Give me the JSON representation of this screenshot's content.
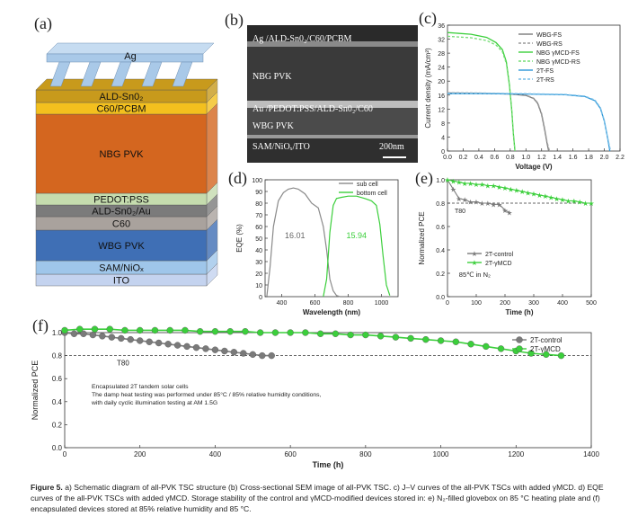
{
  "panel_a": {
    "label": "(a)",
    "layers": [
      "Ag",
      "ALD-Sn0₂",
      "C60/PCBM",
      "NBG PVK",
      "PEDOT:PSS",
      "ALD-Sn0₂/Au",
      "C60",
      "WBG PVK",
      "SAM/NiOₓ",
      "ITO"
    ],
    "colors": [
      "#a9c9e8",
      "#c89a1c",
      "#f3c01e",
      "#d4661f",
      "#c5dcae",
      "#7b7b7b",
      "#a9a29d",
      "#3f6fb5",
      "#9fc6ea",
      "#c4d3ef"
    ]
  },
  "panel_b": {
    "label": "(b)",
    "layers": [
      "Ag /ALD-Sn0₂/C60/PCBM",
      "NBG PVK",
      "Au /PEDOT:PSS/ALD-Sn0₂/C60",
      "WBG PVK",
      "SAM/NiOₓ/ITO"
    ],
    "scale": "200nm"
  },
  "chart_data": [
    {
      "panel": "(c)",
      "type": "line",
      "xlabel": "Voltage (V)",
      "ylabel": "Current density (mA/cm²)",
      "xlim": [
        0.0,
        2.2
      ],
      "ylim": [
        0,
        36
      ],
      "xticks": [
        "0.0",
        "0.2",
        "0.4",
        "0.6",
        "0.8",
        "1.0",
        "1.2",
        "1.4",
        "1.6",
        "1.8",
        "2.0",
        "2.2"
      ],
      "yticks": [
        "0",
        "4",
        "8",
        "12",
        "16",
        "20",
        "24",
        "28",
        "32",
        "36"
      ],
      "legend_position": "top-right",
      "series": [
        {
          "name": "WBG-FS",
          "color": "#7a7a7a",
          "dash": "",
          "x": [
            0,
            0.4,
            0.8,
            1.0,
            1.1,
            1.15,
            1.2,
            1.24,
            1.27,
            1.29
          ],
          "y": [
            16.6,
            16.5,
            16.3,
            15.9,
            15.0,
            13.6,
            10.5,
            6.0,
            2.2,
            0
          ]
        },
        {
          "name": "WBG-RS",
          "color": "#9a9a9a",
          "dash": "3,2",
          "x": [
            0,
            0.4,
            0.8,
            1.0,
            1.1,
            1.15,
            1.2,
            1.24,
            1.27,
            1.3
          ],
          "y": [
            16.7,
            16.6,
            16.4,
            16.0,
            15.1,
            13.8,
            10.8,
            6.4,
            2.6,
            0
          ]
        },
        {
          "name": "NBG γMCD-FS",
          "color": "#3bcf3b",
          "dash": "",
          "x": [
            0,
            0.3,
            0.5,
            0.62,
            0.7,
            0.75,
            0.79,
            0.82,
            0.84,
            0.86
          ],
          "y": [
            33.9,
            33.4,
            32.5,
            31.0,
            29.0,
            25.5,
            19.0,
            11.5,
            5.0,
            0
          ]
        },
        {
          "name": "NBG γMCD-RS",
          "color": "#77dd77",
          "dash": "3,2",
          "x": [
            0,
            0.3,
            0.5,
            0.62,
            0.7,
            0.75,
            0.79,
            0.82,
            0.84,
            0.86
          ],
          "y": [
            32.8,
            32.4,
            31.6,
            30.3,
            28.4,
            25.0,
            18.6,
            11.2,
            4.8,
            0
          ]
        },
        {
          "name": "2T-FS",
          "color": "#2d97d8",
          "dash": "",
          "x": [
            0,
            0.5,
            1.0,
            1.5,
            1.75,
            1.88,
            1.95,
            2.0,
            2.04,
            2.07
          ],
          "y": [
            16.4,
            16.4,
            16.3,
            16.1,
            15.6,
            14.4,
            12.2,
            8.6,
            4.0,
            0
          ]
        },
        {
          "name": "2T-RS",
          "color": "#79bfe8",
          "dash": "3,2",
          "x": [
            0,
            0.5,
            1.0,
            1.5,
            1.75,
            1.88,
            1.95,
            2.0,
            2.04,
            2.08
          ],
          "y": [
            16.5,
            16.5,
            16.4,
            16.2,
            15.7,
            14.6,
            12.4,
            8.8,
            4.2,
            0
          ]
        }
      ]
    },
    {
      "panel": "(d)",
      "type": "line",
      "xlabel": "Wavelength (nm)",
      "ylabel": "EQE (%)",
      "xlim": [
        300,
        1100
      ],
      "ylim": [
        0,
        100
      ],
      "xticks": [
        "400",
        "600",
        "800",
        "1000"
      ],
      "yticks": [
        "0",
        "10",
        "20",
        "30",
        "40",
        "50",
        "60",
        "70",
        "80",
        "90",
        "100"
      ],
      "legend_position": "top-right",
      "annotations": [
        "16.01",
        "15.94"
      ],
      "series": [
        {
          "name": "sub cell",
          "color": "#8a8a8a",
          "x": [
            310,
            330,
            350,
            380,
            410,
            440,
            470,
            500,
            540,
            580,
            620,
            650,
            670,
            690,
            710,
            730,
            750
          ],
          "y": [
            0,
            25,
            60,
            82,
            89,
            92,
            93,
            92,
            88,
            80,
            76,
            60,
            40,
            15,
            5,
            1,
            0
          ]
        },
        {
          "name": "bottom cell",
          "color": "#3bcf3b",
          "x": [
            650,
            670,
            690,
            710,
            730,
            760,
            800,
            850,
            900,
            940,
            970,
            990,
            1010,
            1030,
            1050
          ],
          "y": [
            0,
            15,
            55,
            78,
            84,
            85,
            86,
            86,
            84,
            82,
            78,
            62,
            35,
            10,
            1
          ]
        }
      ]
    },
    {
      "panel": "(e)",
      "type": "line",
      "xlabel": "Time (h)",
      "ylabel": "Normalized PCE",
      "xlim": [
        0,
        500
      ],
      "ylim": [
        0.0,
        1.0
      ],
      "xticks": [
        "0",
        "100",
        "200",
        "300",
        "400",
        "500"
      ],
      "yticks": [
        "0.0",
        "0.2",
        "0.4",
        "0.6",
        "0.8",
        "1.0"
      ],
      "reference": {
        "y": 0.8,
        "label": "T80"
      },
      "annotation": "85℃ in N₂",
      "legend_position": "center-left",
      "series": [
        {
          "name": "2T-control",
          "color": "#7a7a7a",
          "marker": "star",
          "x": [
            0,
            20,
            40,
            60,
            80,
            100,
            120,
            140,
            160,
            180,
            200,
            215
          ],
          "y": [
            1.0,
            0.92,
            0.84,
            0.83,
            0.81,
            0.81,
            0.8,
            0.8,
            0.79,
            0.79,
            0.74,
            0.72
          ]
        },
        {
          "name": "2T-γMCD",
          "color": "#3bcf3b",
          "marker": "star",
          "x": [
            0,
            20,
            40,
            60,
            80,
            100,
            120,
            140,
            160,
            180,
            200,
            220,
            240,
            260,
            280,
            300,
            320,
            340,
            360,
            380,
            400,
            420,
            440,
            460,
            480,
            500
          ],
          "y": [
            1.0,
            0.99,
            0.98,
            0.97,
            0.97,
            0.96,
            0.96,
            0.95,
            0.95,
            0.94,
            0.93,
            0.92,
            0.91,
            0.9,
            0.89,
            0.88,
            0.87,
            0.86,
            0.85,
            0.84,
            0.83,
            0.82,
            0.82,
            0.81,
            0.8,
            0.8
          ]
        }
      ]
    },
    {
      "panel": "(f)",
      "type": "line",
      "xlabel": "Time (h)",
      "ylabel": "Normalized PCE",
      "xlim": [
        0,
        1400
      ],
      "ylim": [
        0.0,
        1.0
      ],
      "xticks": [
        "0",
        "200",
        "400",
        "600",
        "800",
        "1000",
        "1200",
        "1400"
      ],
      "yticks": [
        "0.0",
        "0.2",
        "0.4",
        "0.6",
        "0.8",
        "1.0"
      ],
      "reference": {
        "y": 0.8,
        "label": "T80"
      },
      "legend_position": "top-right",
      "annotation_lines": [
        "Encapsulated   2T tandem solar cells",
        "The damp heat testing was performed under 85°C / 85% relative humidity conditions,",
        "with daily cyclic illumination testing at AM 1.5G"
      ],
      "series": [
        {
          "name": "2T-control",
          "color": "#7a7a7a",
          "marker": "circle",
          "x": [
            0,
            25,
            50,
            75,
            100,
            125,
            150,
            175,
            200,
            225,
            250,
            275,
            300,
            325,
            350,
            375,
            400,
            425,
            450,
            475,
            500,
            525,
            550
          ],
          "y": [
            1.0,
            0.99,
            0.99,
            0.98,
            0.97,
            0.96,
            0.95,
            0.94,
            0.93,
            0.92,
            0.91,
            0.9,
            0.89,
            0.88,
            0.87,
            0.86,
            0.85,
            0.84,
            0.83,
            0.82,
            0.81,
            0.8,
            0.8
          ]
        },
        {
          "name": "2T-γMCD",
          "color": "#3bcf3b",
          "marker": "circle",
          "x": [
            0,
            40,
            80,
            120,
            160,
            200,
            240,
            280,
            320,
            360,
            400,
            440,
            480,
            520,
            560,
            600,
            640,
            680,
            720,
            760,
            800,
            840,
            880,
            920,
            960,
            1000,
            1040,
            1080,
            1120,
            1160,
            1200,
            1240,
            1280,
            1320
          ],
          "y": [
            1.02,
            1.03,
            1.03,
            1.03,
            1.02,
            1.02,
            1.02,
            1.02,
            1.02,
            1.01,
            1.01,
            1.01,
            1.01,
            1.0,
            1.0,
            1.0,
            1.0,
            0.99,
            0.99,
            0.98,
            0.98,
            0.97,
            0.96,
            0.95,
            0.94,
            0.93,
            0.92,
            0.9,
            0.88,
            0.86,
            0.84,
            0.82,
            0.81,
            0.8
          ]
        }
      ]
    }
  ],
  "caption": {
    "label": "Figure 5.",
    "text": "a) Schematic diagram of all-PVK TSC structure (b) Cross-sectional SEM image of all-PVK TSC. c) J–V curves of the all-PVK TSCs with added γMCD. d) EQE curves of the all-PVK TSCs with added γMCD. Storage stability of the control and γMCD-modified devices stored in: e) N₂-filled glovebox on 85 °C heating plate and (f) encapsulated devices stored at 85% relative humidity and 85 °C."
  }
}
